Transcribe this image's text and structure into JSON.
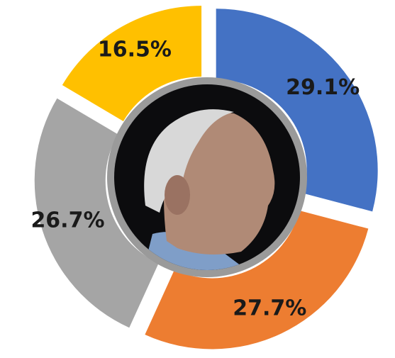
{
  "chart_data": {
    "type": "donut",
    "categories": [
      null,
      null,
      null,
      null
    ],
    "values": [
      29.1,
      27.7,
      26.7,
      16.5
    ],
    "value_labels": [
      "29.1%",
      "27.7%",
      "26.7%",
      "16.5%"
    ],
    "colors": [
      "#4472c4",
      "#ed7d31",
      "#a5a5a5",
      "#ffc000"
    ]
  }
}
